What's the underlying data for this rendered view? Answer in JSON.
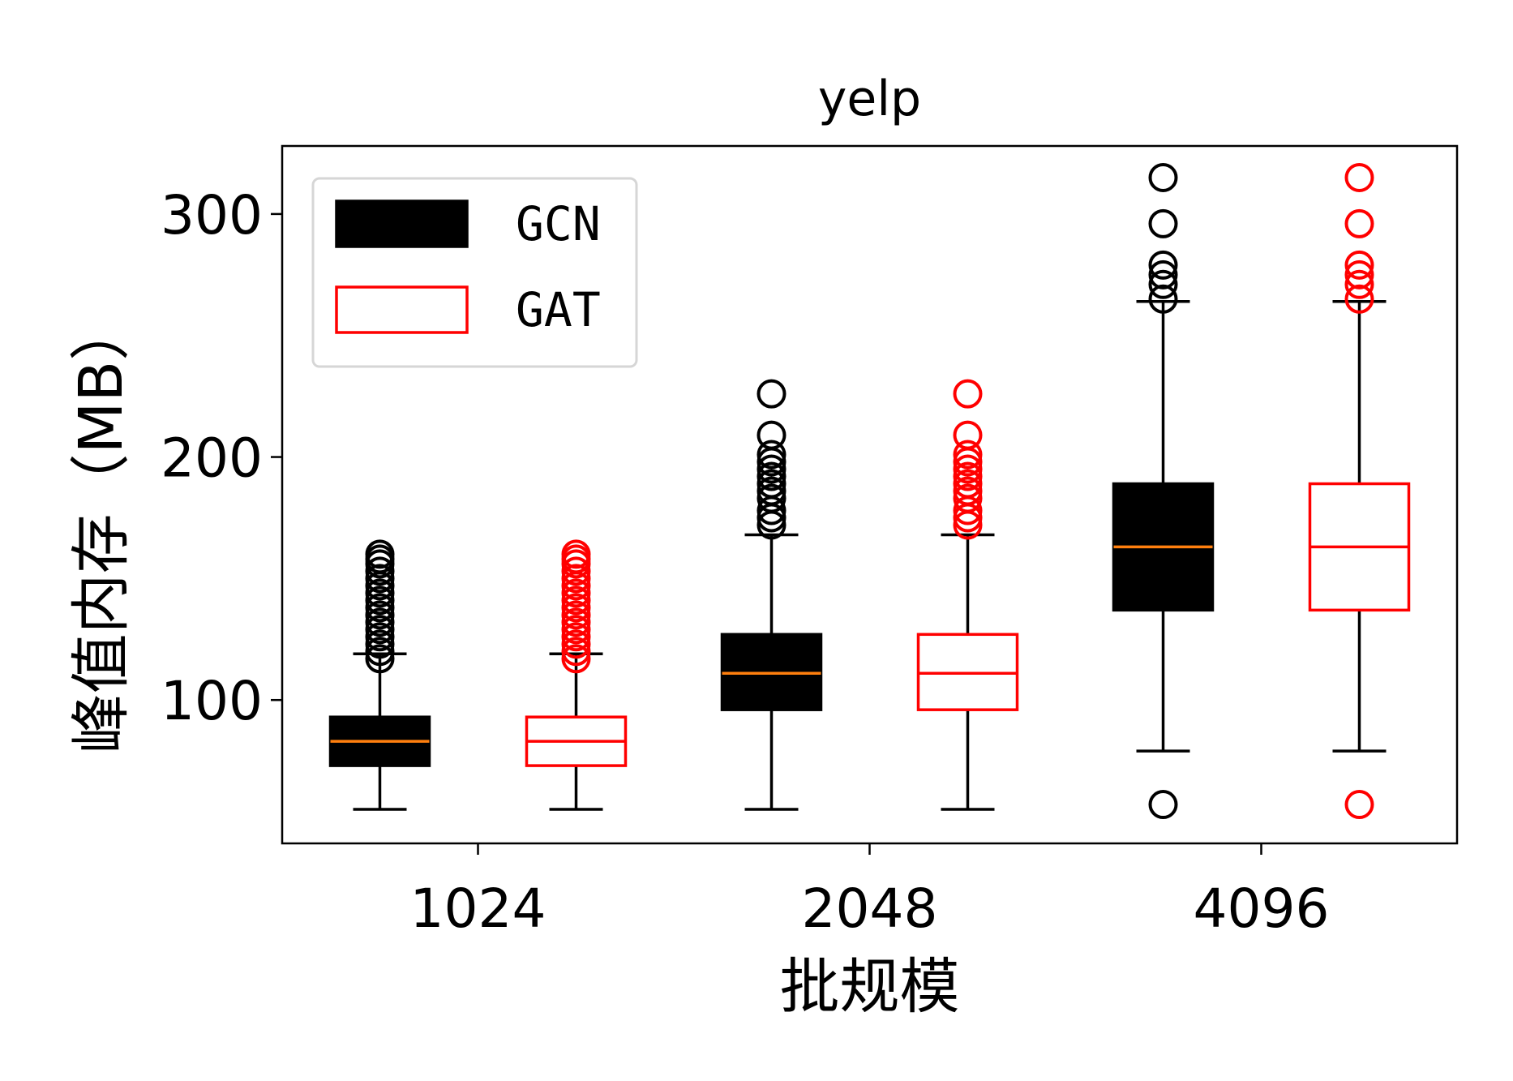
{
  "chart_data": {
    "type": "box",
    "title": "yelp",
    "xlabel": "批规模",
    "ylabel": "峰值内存（MB）",
    "categories": [
      "1024",
      "2048",
      "4096"
    ],
    "yticks": [
      100,
      200,
      300
    ],
    "ylim": [
      41,
      328
    ],
    "grid": false,
    "legend_position": "top-left",
    "median_color": "#ff7f0e",
    "series": [
      {
        "name": "GCN",
        "style": "filled",
        "color": "#000000",
        "boxes": [
          {
            "category": "1024",
            "whisker_low": 55,
            "q1": 73,
            "median": 83,
            "q3": 93,
            "whisker_high": 119,
            "outliers": [
              117,
              120,
              123,
              126,
              129,
              132,
              135,
              138,
              141,
              144,
              147,
              150,
              153,
              156,
              158,
              160
            ]
          },
          {
            "category": "2048",
            "whisker_low": 55,
            "q1": 96,
            "median": 111,
            "q3": 127,
            "whisker_high": 168,
            "outliers": [
              172,
              175,
              178,
              183,
              186,
              189,
              192,
              195,
              198,
              201,
              209,
              226
            ]
          },
          {
            "category": "4096",
            "whisker_low": 79,
            "q1": 137,
            "median": 163,
            "q3": 189,
            "whisker_high": 264,
            "outliers": [
              57,
              265,
              271,
              275,
              279,
              296,
              315
            ]
          }
        ]
      },
      {
        "name": "GAT",
        "style": "outline",
        "color": "#ff0000",
        "boxes": [
          {
            "category": "1024",
            "whisker_low": 55,
            "q1": 73,
            "median": 83,
            "q3": 93,
            "whisker_high": 119,
            "outliers": [
              117,
              120,
              123,
              126,
              129,
              132,
              135,
              138,
              141,
              144,
              147,
              150,
              153,
              156,
              158,
              160
            ]
          },
          {
            "category": "2048",
            "whisker_low": 55,
            "q1": 96,
            "median": 111,
            "q3": 127,
            "whisker_high": 168,
            "outliers": [
              172,
              175,
              178,
              183,
              186,
              189,
              192,
              195,
              198,
              201,
              209,
              226
            ]
          },
          {
            "category": "4096",
            "whisker_low": 79,
            "q1": 137,
            "median": 163,
            "q3": 189,
            "whisker_high": 264,
            "outliers": [
              57,
              265,
              271,
              275,
              279,
              296,
              315
            ]
          }
        ]
      }
    ]
  }
}
